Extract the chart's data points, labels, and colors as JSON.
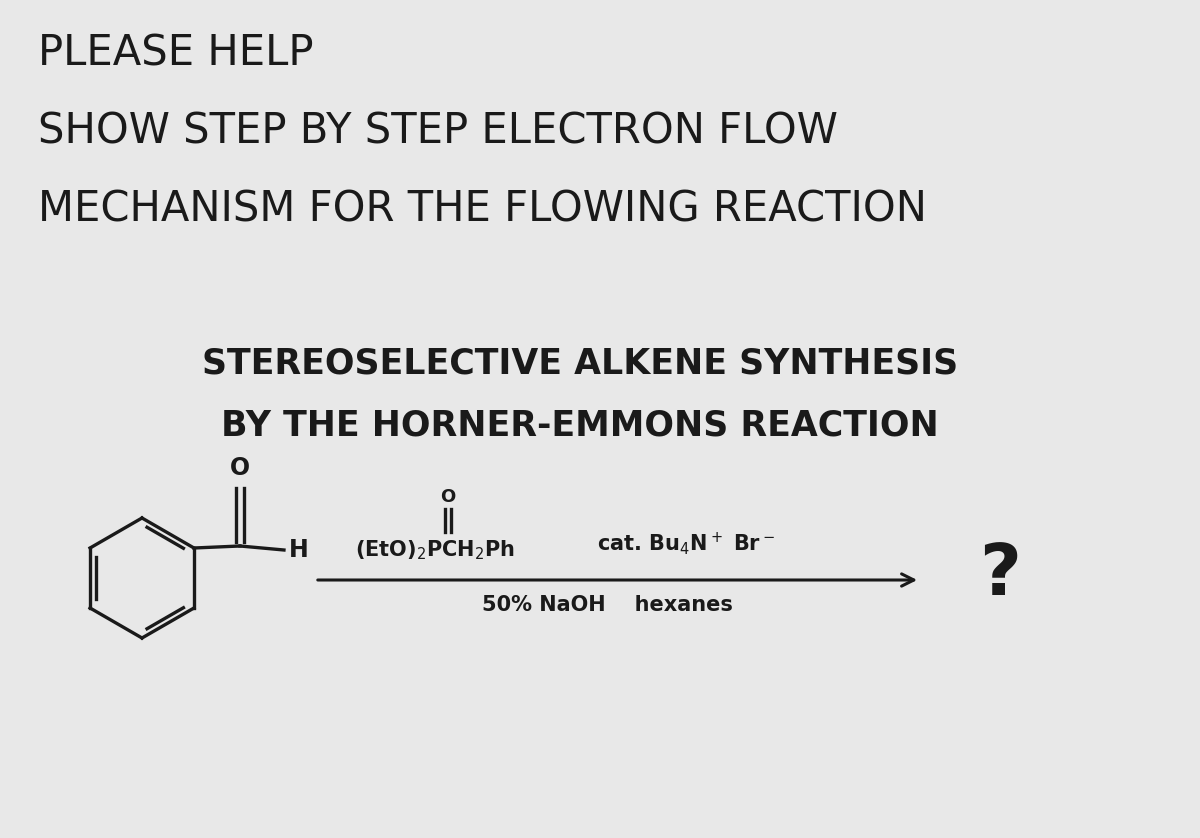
{
  "background_color": "#e8e8e8",
  "title_lines": [
    "PLEASE HELP",
    "SHOW STEP BY STEP ELECTRON FLOW",
    "MECHANISM FOR THE FLOWING REACTION"
  ],
  "subtitle_lines": [
    "STEREOSELECTIVE ALKENE SYNTHESIS",
    "BY THE HORNER-EMMONS REACTION"
  ],
  "text_color": "#1a1a1a",
  "title_fontsize": 30,
  "subtitle_fontsize": 25,
  "reagent_fontsize": 15,
  "question_fontsize": 52
}
